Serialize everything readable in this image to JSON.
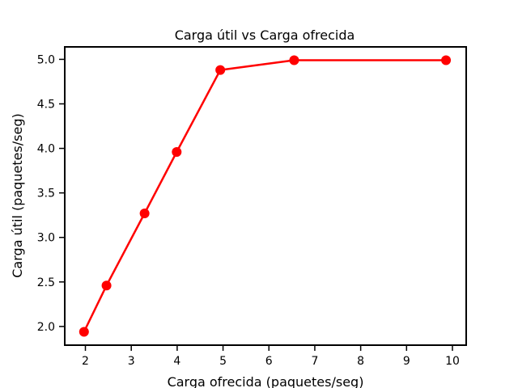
{
  "chart_data": {
    "type": "line",
    "title": "Carga útil vs Carga ofrecida",
    "xlabel": "Carga ofrecida (paquetes/seg)",
    "ylabel": "Carga útil (paquetes/seg)",
    "xlim": [
      1.55,
      10.3
    ],
    "ylim": [
      1.79,
      5.14
    ],
    "xticks": [
      2,
      3,
      4,
      5,
      6,
      7,
      8,
      9,
      10
    ],
    "yticks": [
      2.0,
      2.5,
      3.0,
      3.5,
      4.0,
      4.5,
      5.0
    ],
    "ytick_labels": [
      "2.0",
      "2.5",
      "3.0",
      "3.5",
      "4.0",
      "4.5",
      "5.0"
    ],
    "grid": false,
    "series": [
      {
        "color": "#ff0000",
        "x": [
          1.97,
          2.46,
          3.29,
          3.99,
          4.94,
          6.55,
          9.86
        ],
        "y": [
          1.94,
          2.46,
          3.27,
          3.96,
          4.88,
          4.99,
          4.99
        ]
      }
    ]
  }
}
